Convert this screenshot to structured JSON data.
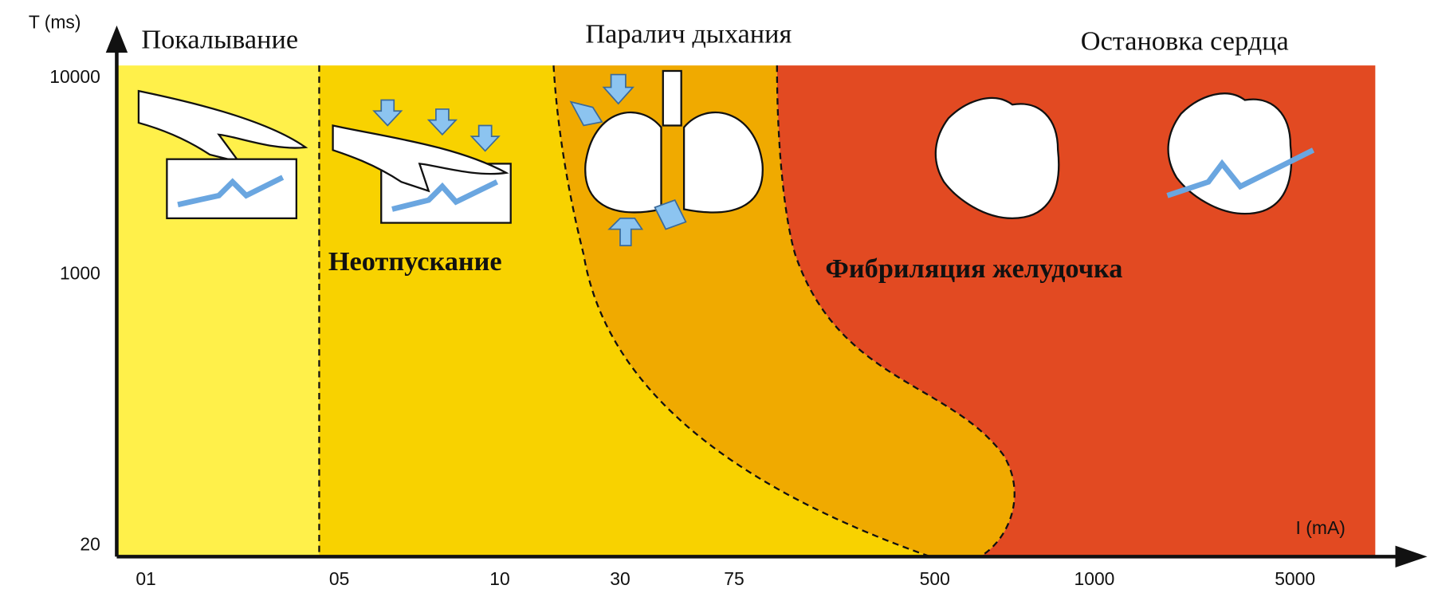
{
  "axes": {
    "y_label": "T (ms)",
    "x_label": "I (mA)",
    "y_ticks": [
      "10000",
      "1000",
      "20"
    ],
    "x_ticks": [
      "01",
      "05",
      "10",
      "30",
      "75",
      "500",
      "1000",
      "5000"
    ]
  },
  "zones": [
    "Покалывание",
    "Неотпускание",
    "Паралич дыхания",
    "Фибриляция желудочка",
    "Остановка сердца"
  ]
}
